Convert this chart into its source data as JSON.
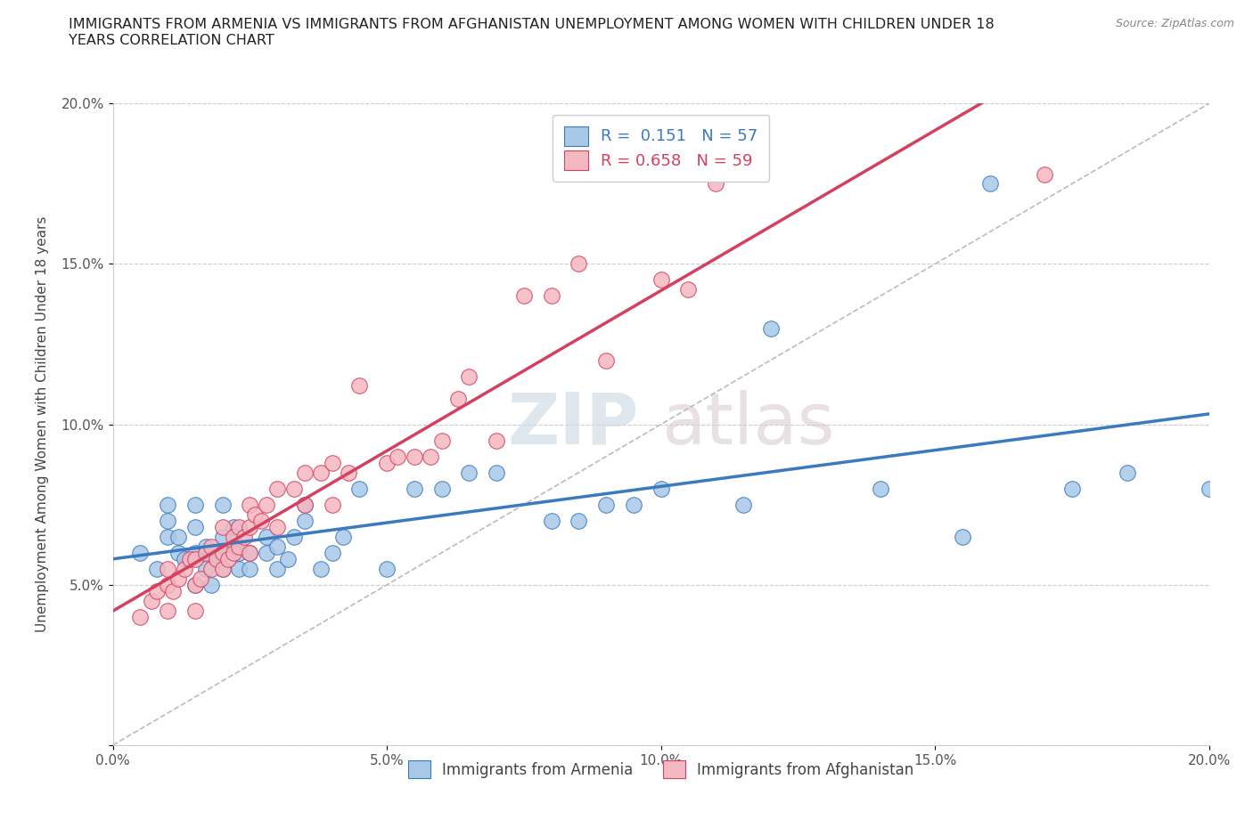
{
  "title": "IMMIGRANTS FROM ARMENIA VS IMMIGRANTS FROM AFGHANISTAN UNEMPLOYMENT AMONG WOMEN WITH CHILDREN UNDER 18\nYEARS CORRELATION CHART",
  "source": "Source: ZipAtlas.com",
  "ylabel": "Unemployment Among Women with Children Under 18 years",
  "xlim": [
    0.0,
    0.2
  ],
  "ylim": [
    0.0,
    0.2
  ],
  "xticks": [
    0.0,
    0.05,
    0.1,
    0.15,
    0.2
  ],
  "yticks": [
    0.0,
    0.05,
    0.1,
    0.15,
    0.2
  ],
  "xticklabels": [
    "0.0%",
    "5.0%",
    "10.0%",
    "15.0%",
    "20.0%"
  ],
  "yticklabels": [
    "",
    "5.0%",
    "10.0%",
    "15.0%",
    "20.0%"
  ],
  "armenia_color": "#a8c8e8",
  "afghanistan_color": "#f4b8c0",
  "armenia_line_color": "#3a7abf",
  "afghanistan_line_color": "#d44060",
  "regression_dashed_color": "#bbbbbb",
  "watermark_zip": "ZIP",
  "watermark_atlas": "atlas",
  "legend_R_armenia": "0.151",
  "legend_N_armenia": "57",
  "legend_R_afghanistan": "0.658",
  "legend_N_afghanistan": "59",
  "armenia_x": [
    0.005,
    0.008,
    0.01,
    0.01,
    0.01,
    0.012,
    0.012,
    0.013,
    0.015,
    0.015,
    0.015,
    0.015,
    0.017,
    0.017,
    0.018,
    0.018,
    0.019,
    0.02,
    0.02,
    0.02,
    0.02,
    0.022,
    0.022,
    0.023,
    0.023,
    0.025,
    0.025,
    0.028,
    0.028,
    0.03,
    0.03,
    0.032,
    0.033,
    0.035,
    0.035,
    0.038,
    0.04,
    0.042,
    0.045,
    0.05,
    0.055,
    0.06,
    0.065,
    0.07,
    0.08,
    0.085,
    0.09,
    0.095,
    0.1,
    0.115,
    0.12,
    0.14,
    0.155,
    0.16,
    0.175,
    0.185,
    0.2
  ],
  "armenia_y": [
    0.06,
    0.055,
    0.065,
    0.07,
    0.075,
    0.06,
    0.065,
    0.058,
    0.05,
    0.06,
    0.068,
    0.075,
    0.055,
    0.062,
    0.05,
    0.06,
    0.058,
    0.055,
    0.06,
    0.065,
    0.075,
    0.062,
    0.068,
    0.055,
    0.06,
    0.055,
    0.06,
    0.06,
    0.065,
    0.055,
    0.062,
    0.058,
    0.065,
    0.07,
    0.075,
    0.055,
    0.06,
    0.065,
    0.08,
    0.055,
    0.08,
    0.08,
    0.085,
    0.085,
    0.07,
    0.07,
    0.075,
    0.075,
    0.08,
    0.075,
    0.13,
    0.08,
    0.065,
    0.175,
    0.08,
    0.085,
    0.08
  ],
  "afghanistan_x": [
    0.005,
    0.007,
    0.008,
    0.01,
    0.01,
    0.01,
    0.011,
    0.012,
    0.013,
    0.014,
    0.015,
    0.015,
    0.015,
    0.016,
    0.017,
    0.018,
    0.018,
    0.019,
    0.02,
    0.02,
    0.02,
    0.021,
    0.022,
    0.022,
    0.023,
    0.023,
    0.024,
    0.025,
    0.025,
    0.025,
    0.026,
    0.027,
    0.028,
    0.03,
    0.03,
    0.033,
    0.035,
    0.035,
    0.038,
    0.04,
    0.04,
    0.043,
    0.045,
    0.05,
    0.052,
    0.055,
    0.058,
    0.06,
    0.063,
    0.065,
    0.07,
    0.075,
    0.08,
    0.085,
    0.09,
    0.1,
    0.105,
    0.11,
    0.17
  ],
  "afghanistan_y": [
    0.04,
    0.045,
    0.048,
    0.042,
    0.05,
    0.055,
    0.048,
    0.052,
    0.055,
    0.058,
    0.042,
    0.05,
    0.058,
    0.052,
    0.06,
    0.055,
    0.062,
    0.058,
    0.055,
    0.06,
    0.068,
    0.058,
    0.06,
    0.065,
    0.062,
    0.068,
    0.065,
    0.06,
    0.068,
    0.075,
    0.072,
    0.07,
    0.075,
    0.068,
    0.08,
    0.08,
    0.075,
    0.085,
    0.085,
    0.075,
    0.088,
    0.085,
    0.112,
    0.088,
    0.09,
    0.09,
    0.09,
    0.095,
    0.108,
    0.115,
    0.095,
    0.14,
    0.14,
    0.15,
    0.12,
    0.145,
    0.142,
    0.175,
    0.178
  ]
}
